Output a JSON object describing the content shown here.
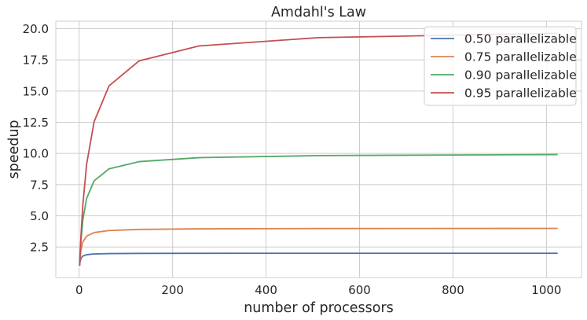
{
  "chart_data": {
    "type": "line",
    "title": "Amdahl's Law",
    "xlabel": "number of processors",
    "ylabel": "speedup",
    "xlim": [
      -50,
      1075
    ],
    "ylim": [
      0.05,
      20.6
    ],
    "xticks": [
      0,
      200,
      400,
      600,
      800,
      1000
    ],
    "yticks": [
      2.5,
      5.0,
      7.5,
      10.0,
      12.5,
      15.0,
      17.5,
      20.0
    ],
    "xtick_labels": [
      "0",
      "200",
      "400",
      "600",
      "800",
      "1000"
    ],
    "ytick_labels": [
      "2.5",
      "5.0",
      "7.5",
      "10.0",
      "12.5",
      "15.0",
      "17.5",
      "20.0"
    ],
    "grid": true,
    "legend_position": "top-right",
    "x": [
      1,
      2,
      4,
      8,
      16,
      32,
      64,
      128,
      256,
      512,
      1024
    ],
    "series": [
      {
        "name": "0.50 parallelizable",
        "color": "#4c72b0",
        "values": [
          1.0,
          1.333,
          1.6,
          1.778,
          1.882,
          1.939,
          1.969,
          1.984,
          1.992,
          1.996,
          1.998
        ]
      },
      {
        "name": "0.75 parallelizable",
        "color": "#dd8452",
        "values": [
          1.0,
          1.6,
          2.286,
          2.909,
          3.368,
          3.657,
          3.821,
          3.908,
          3.954,
          3.977,
          3.988
        ]
      },
      {
        "name": "0.90 parallelizable",
        "color": "#55a868",
        "values": [
          1.0,
          1.818,
          3.077,
          4.706,
          6.4,
          7.805,
          8.767,
          9.343,
          9.66,
          9.827,
          9.912
        ]
      },
      {
        "name": "0.95 parallelizable",
        "color": "#c44e52",
        "values": [
          1.0,
          1.905,
          3.478,
          5.926,
          9.143,
          12.549,
          15.422,
          17.415,
          18.618,
          19.284,
          19.637
        ]
      }
    ]
  }
}
